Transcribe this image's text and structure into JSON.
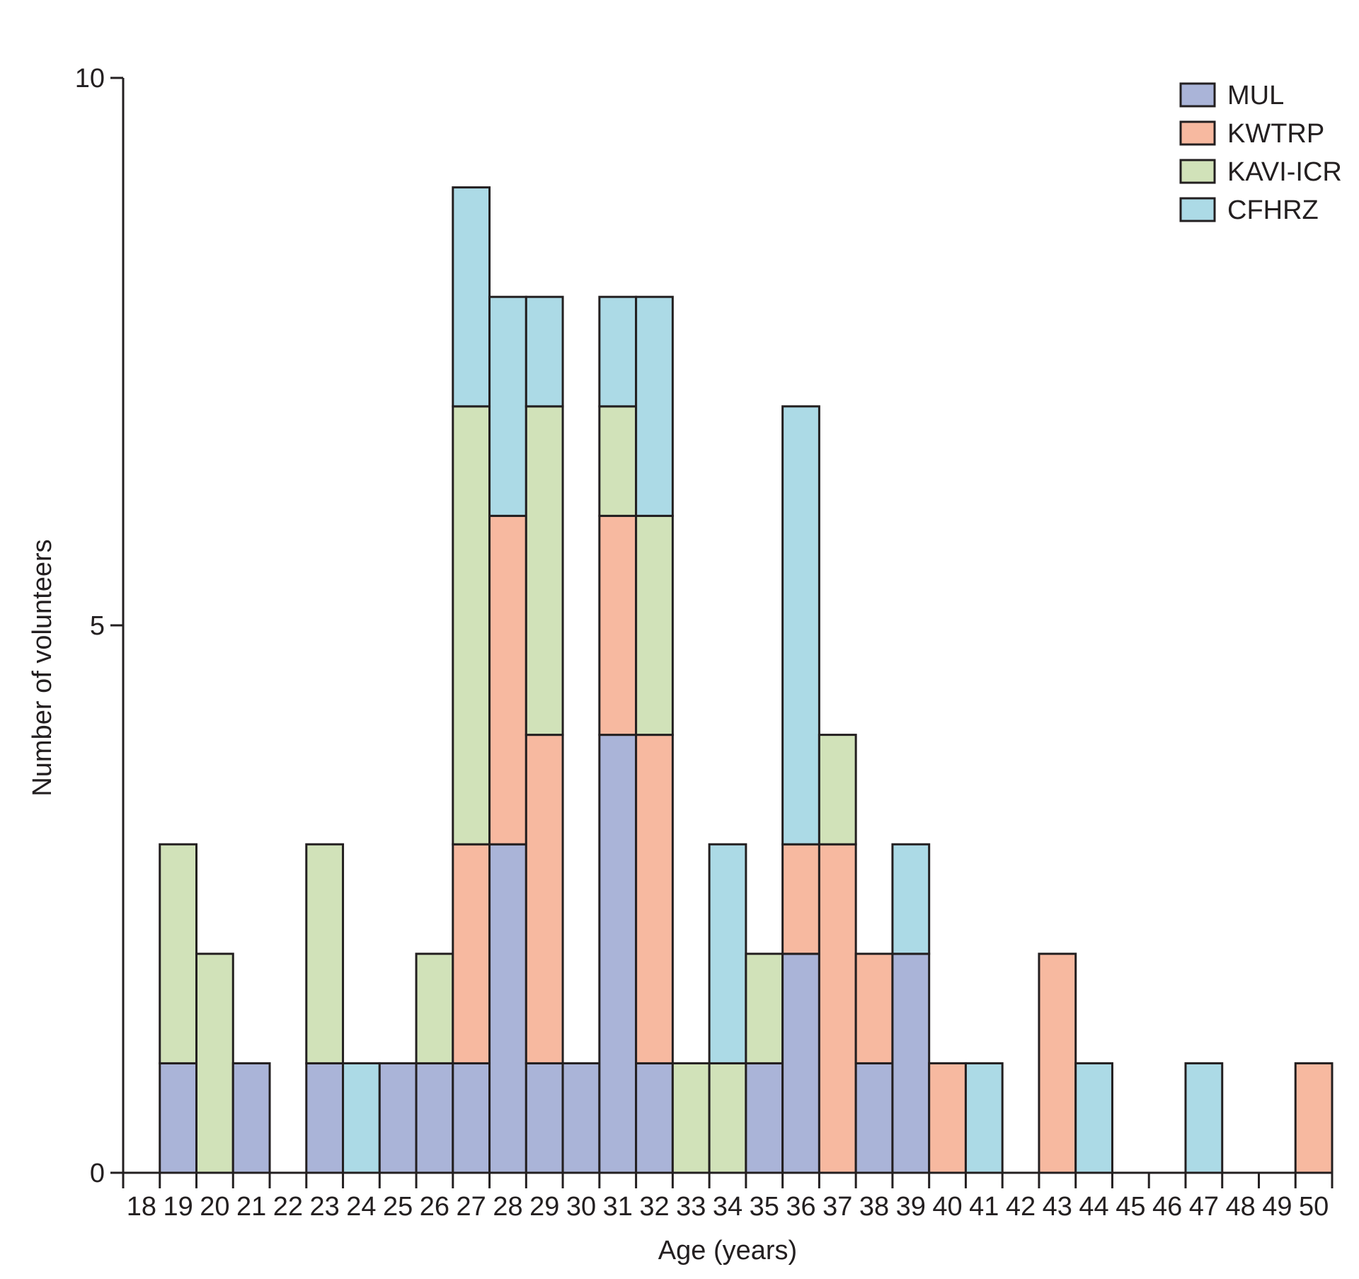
{
  "chart_data": {
    "type": "bar",
    "stacked": true,
    "xlabel": "Age (years)",
    "ylabel": "Number of volunteers",
    "ylim": [
      0,
      10
    ],
    "yticks": [
      0,
      5,
      10
    ],
    "categories": [
      "18",
      "19",
      "20",
      "21",
      "22",
      "23",
      "24",
      "25",
      "26",
      "27",
      "28",
      "29",
      "30",
      "31",
      "32",
      "33",
      "34",
      "35",
      "36",
      "37",
      "38",
      "39",
      "40",
      "41",
      "42",
      "43",
      "44",
      "45",
      "46",
      "47",
      "48",
      "49",
      "50"
    ],
    "series": [
      {
        "name": "MUL",
        "color": "#aab4d8",
        "values": [
          0,
          1,
          0,
          1,
          0,
          1,
          0,
          1,
          1,
          1,
          3,
          1,
          1,
          4,
          1,
          0,
          0,
          1,
          2,
          0,
          1,
          2,
          0,
          0,
          0,
          0,
          0,
          0,
          0,
          0,
          0,
          0,
          0
        ]
      },
      {
        "name": "KWTRP",
        "color": "#f7b9a0",
        "values": [
          0,
          0,
          0,
          0,
          0,
          0,
          0,
          0,
          0,
          2,
          3,
          3,
          0,
          2,
          3,
          0,
          0,
          0,
          1,
          3,
          1,
          0,
          1,
          0,
          0,
          2,
          0,
          0,
          0,
          0,
          0,
          0,
          1
        ]
      },
      {
        "name": "KAVI-ICR",
        "color": "#d1e2b9",
        "values": [
          0,
          2,
          2,
          0,
          0,
          2,
          0,
          0,
          1,
          4,
          0,
          3,
          0,
          1,
          2,
          1,
          1,
          1,
          0,
          1,
          0,
          0,
          0,
          0,
          0,
          0,
          0,
          0,
          0,
          0,
          0,
          0,
          0
        ]
      },
      {
        "name": "CFHRZ",
        "color": "#acdae6",
        "values": [
          0,
          0,
          0,
          0,
          0,
          0,
          1,
          0,
          0,
          2,
          2,
          1,
          0,
          1,
          2,
          0,
          2,
          0,
          4,
          0,
          0,
          1,
          0,
          1,
          0,
          0,
          1,
          0,
          0,
          1,
          0,
          0,
          0
        ]
      }
    ],
    "legend_position": "top-right",
    "grid": false
  }
}
